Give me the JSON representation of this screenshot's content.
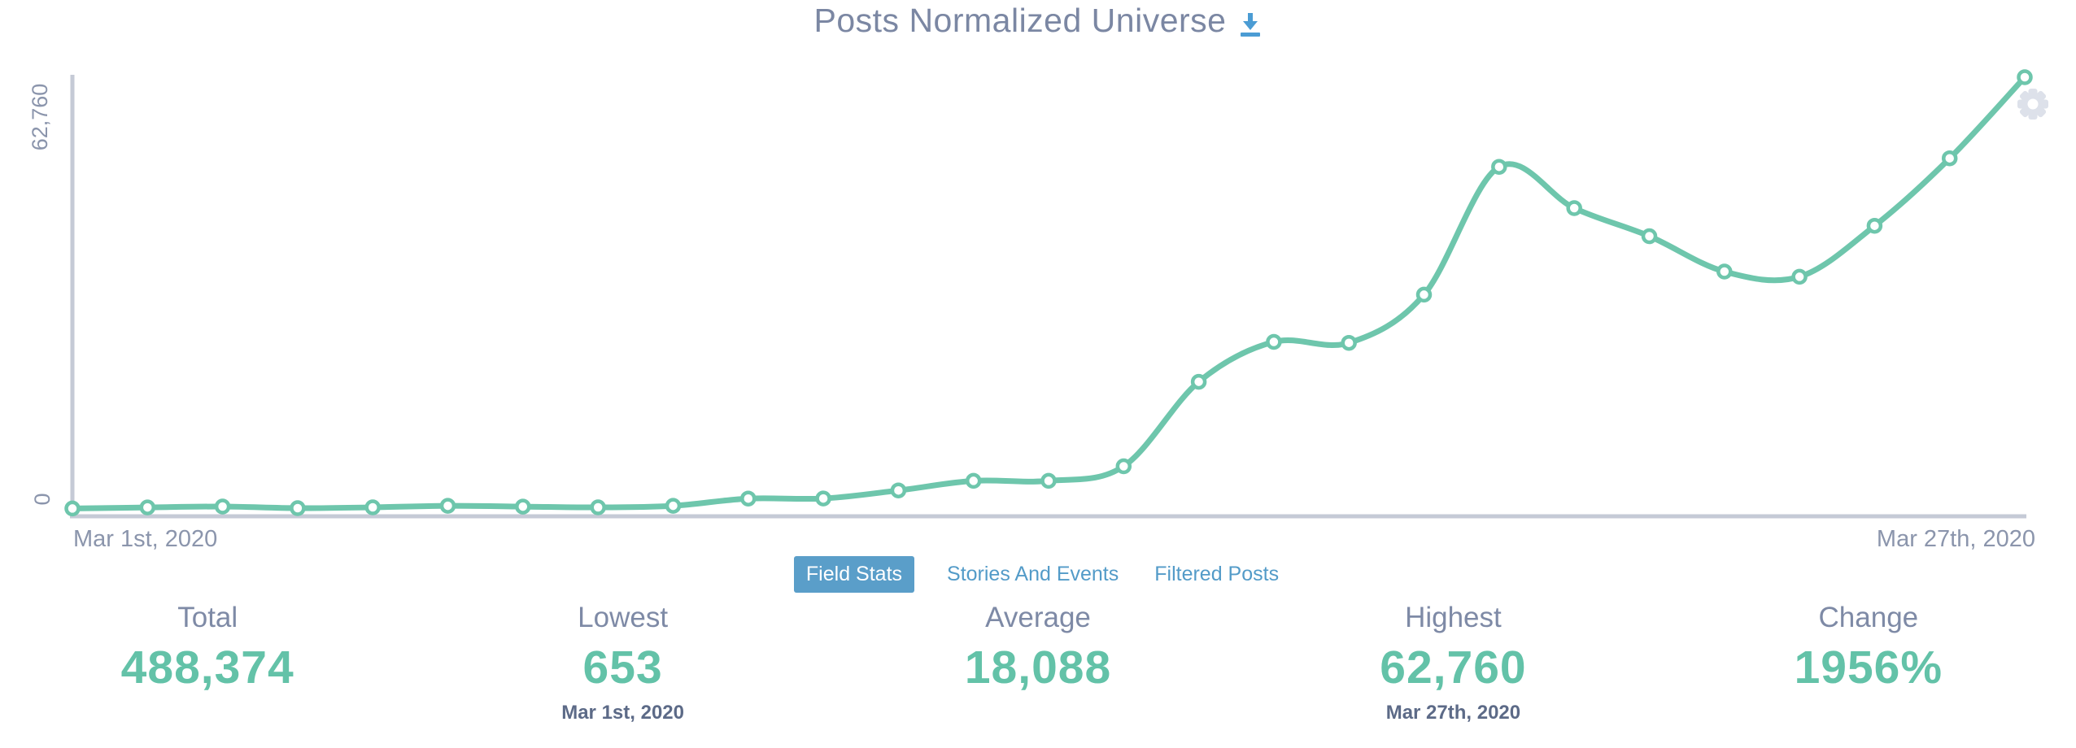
{
  "header": {
    "title": "Posts Normalized Universe",
    "download_icon": "download-icon"
  },
  "chart": {
    "y_axis_top_label": "62,760",
    "y_axis_bottom_label": "0",
    "x_axis_start_label": "Mar 1st, 2020",
    "x_axis_end_label": "Mar 27th, 2020",
    "settings_icon": "gear-icon"
  },
  "chart_data": {
    "type": "line",
    "title": "Posts Normalized Universe",
    "x": [
      "Mar 1, 2020",
      "Mar 2, 2020",
      "Mar 3, 2020",
      "Mar 4, 2020",
      "Mar 5, 2020",
      "Mar 6, 2020",
      "Mar 7, 2020",
      "Mar 8, 2020",
      "Mar 9, 2020",
      "Mar 10, 2020",
      "Mar 11, 2020",
      "Mar 12, 2020",
      "Mar 13, 2020",
      "Mar 14, 2020",
      "Mar 15, 2020",
      "Mar 16, 2020",
      "Mar 17, 2020",
      "Mar 18, 2020",
      "Mar 19, 2020",
      "Mar 20, 2020",
      "Mar 21, 2020",
      "Mar 22, 2020",
      "Mar 23, 2020",
      "Mar 24, 2020",
      "Mar 25, 2020",
      "Mar 26, 2020",
      "Mar 27, 2020"
    ],
    "values": [
      653,
      812,
      934,
      706,
      818,
      1042,
      928,
      815,
      1047,
      2085,
      2093,
      3254,
      4638,
      4641,
      6731,
      18902,
      24651,
      24512,
      31454,
      49856,
      43912,
      39874,
      34781,
      34023,
      41362,
      51090,
      62760
    ],
    "ylim": [
      0,
      62760
    ],
    "xlabel": "",
    "ylabel": "",
    "grid": false,
    "legend": "none",
    "y_axis_visible_labels": [
      "0",
      "62,760"
    ],
    "x_axis_visible_labels": [
      "Mar 1st, 2020",
      "Mar 27th, 2020"
    ],
    "line_color": "#6ec6ac",
    "point_fill": "#ffffff",
    "point_stroke": "#6ec6ac"
  },
  "tabs": [
    {
      "label": "Field Stats",
      "active": true
    },
    {
      "label": "Stories And Events",
      "active": false
    },
    {
      "label": "Filtered Posts",
      "active": false
    }
  ],
  "stats": [
    {
      "label": "Total",
      "value": "488,374"
    },
    {
      "label": "Lowest",
      "value": "653",
      "date": "Mar 1st, 2020"
    },
    {
      "label": "Average",
      "value": "18,088"
    },
    {
      "label": "Highest",
      "value": "62,760",
      "date": "Mar 27th, 2020"
    },
    {
      "label": "Change",
      "value": "1956%"
    }
  ],
  "colors": {
    "accent_teal": "#63c2a8",
    "line_teal": "#6ec6ac",
    "tab_blue": "#5a9ec9",
    "label_gray_blue": "#7e8aa6",
    "axis_gray": "#c5cad6",
    "download_blue": "#4b9cd4",
    "gear_gray": "#dde1ea"
  }
}
